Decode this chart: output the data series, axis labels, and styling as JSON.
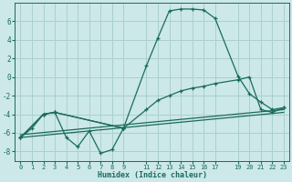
{
  "xlabel": "Humidex (Indice chaleur)",
  "bg_color": "#cce8e8",
  "grid_color": "#aad0d0",
  "line_color": "#1a6b5a",
  "xlim": [
    -0.5,
    23.5
  ],
  "ylim": [
    -9,
    8
  ],
  "yticks": [
    -8,
    -6,
    -4,
    -2,
    0,
    2,
    4,
    6
  ],
  "xticks": [
    0,
    1,
    2,
    3,
    4,
    5,
    6,
    7,
    8,
    9,
    11,
    12,
    13,
    14,
    15,
    16,
    17,
    19,
    20,
    21,
    22,
    23
  ],
  "series1_x": [
    0,
    2,
    3,
    9,
    11,
    12,
    13,
    14,
    15,
    16,
    17,
    19,
    20,
    21,
    22,
    23
  ],
  "series1_y": [
    -6.5,
    -4.0,
    -3.8,
    -5.5,
    1.2,
    4.2,
    7.1,
    7.3,
    7.3,
    7.2,
    6.3,
    0.1,
    -1.8,
    -2.7,
    -3.5,
    -3.3
  ],
  "series2_x": [
    0,
    2,
    3,
    9,
    11,
    12,
    13,
    14,
    15,
    16,
    17,
    19,
    20,
    21,
    22,
    23
  ],
  "series2_y": [
    -6.5,
    -4.0,
    -3.8,
    -5.5,
    -3.5,
    -2.5,
    -2.0,
    -1.5,
    -1.2,
    -1.0,
    -0.7,
    -0.3,
    0.0,
    -3.5,
    -3.8,
    -3.3
  ],
  "series3_x": [
    0,
    23
  ],
  "series3_y": [
    -6.2,
    -3.5
  ],
  "series4_x": [
    0,
    23
  ],
  "series4_y": [
    -6.5,
    -3.8
  ],
  "zigzag_x": [
    0,
    1,
    2,
    3,
    4,
    5,
    6,
    7,
    8,
    9
  ],
  "zigzag_y": [
    -6.5,
    -5.5,
    -4.0,
    -3.8,
    -6.5,
    -7.5,
    -5.8,
    -8.2,
    -7.8,
    -5.5
  ]
}
